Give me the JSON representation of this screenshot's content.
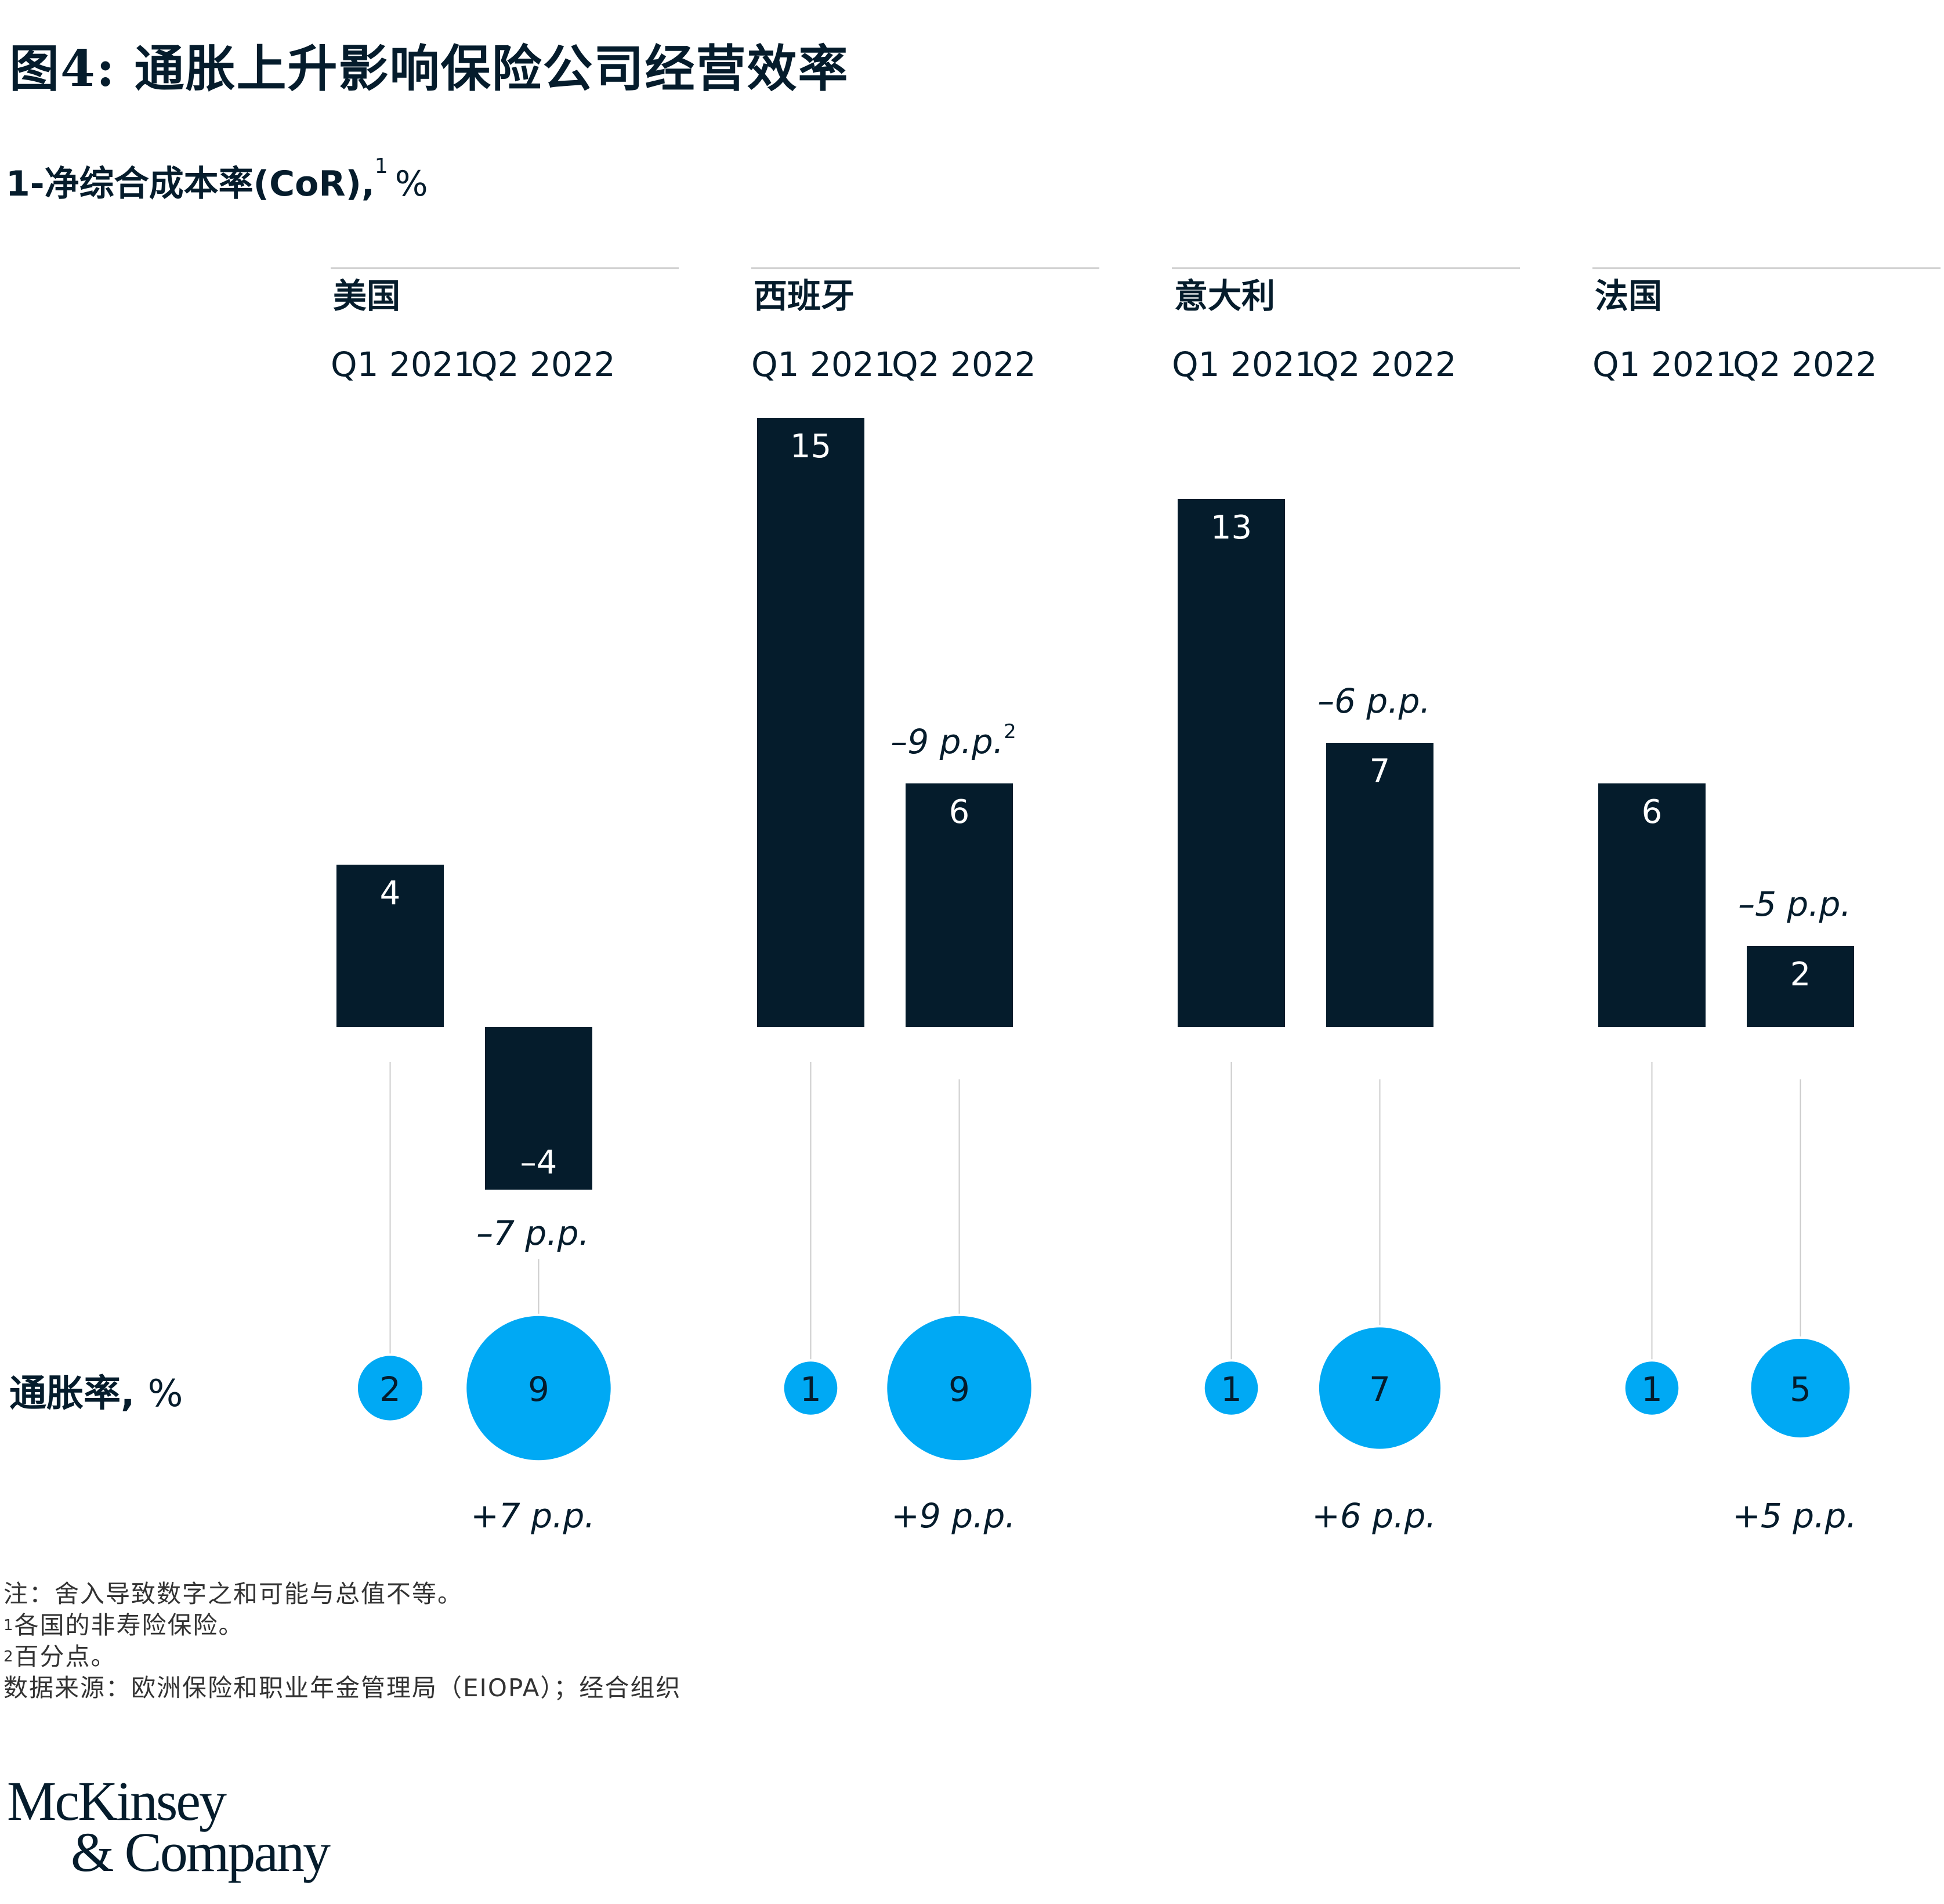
{
  "title": "图4: 通胀上升影响保险公司经营效率",
  "subtitle": {
    "text": "1-净综合成本率(CoR),",
    "footnote_ref": "1",
    "unit": "%"
  },
  "inflation_axis_label": {
    "text": "通胀率,",
    "unit": "%"
  },
  "colors": {
    "bar": "#051c2c",
    "bubble": "#00a9f4",
    "text": "#051c2c",
    "rule": "#cccccc"
  },
  "chart_data": {
    "type": "bar",
    "title": "1-净综合成本率(CoR), %",
    "period_labels": [
      "Q1 2021",
      "Q2 2022"
    ],
    "series": [
      {
        "name": "1-净综合成本率(CoR), %",
        "groups": {
          "美国": [
            4,
            -4
          ],
          "西班牙": [
            15,
            6
          ],
          "意大利": [
            13,
            7
          ],
          "法国": [
            6,
            2
          ]
        }
      },
      {
        "name": "通胀率, %",
        "groups": {
          "美国": [
            2,
            9
          ],
          "西班牙": [
            1,
            9
          ],
          "意大利": [
            1,
            7
          ],
          "法国": [
            1,
            5
          ]
        }
      }
    ],
    "groups": [
      {
        "country": "美国",
        "cor": [
          4,
          -4
        ],
        "cor_change": "–7 p.p.",
        "cor_change_sup": "",
        "inflation": [
          2,
          9
        ],
        "inflation_change": "+7 p.p."
      },
      {
        "country": "西班牙",
        "cor": [
          15,
          6
        ],
        "cor_change": "–9 p.p.",
        "cor_change_sup": "2",
        "inflation": [
          1,
          9
        ],
        "inflation_change": "+9 p.p."
      },
      {
        "country": "意大利",
        "cor": [
          13,
          7
        ],
        "cor_change": "–6 p.p.",
        "cor_change_sup": "",
        "inflation": [
          1,
          7
        ],
        "inflation_change": "+6 p.p."
      },
      {
        "country": "法国",
        "cor": [
          6,
          2
        ],
        "cor_change": "–5 p.p.",
        "cor_change_sup": "",
        "inflation": [
          1,
          5
        ],
        "inflation_change": "+5 p.p."
      }
    ]
  },
  "notes": [
    {
      "sup": "",
      "text": "注：舍入导致数字之和可能与总值不等。"
    },
    {
      "sup": "1",
      "text": "各国的非寿险保险。"
    },
    {
      "sup": "2",
      "text": "百分点。"
    },
    {
      "sup": "",
      "text": "数据来源：欧洲保险和职业年金管理局（EIOPA）；经合组织"
    }
  ],
  "logo": {
    "line1": "McKinsey",
    "line2": "& Company"
  }
}
